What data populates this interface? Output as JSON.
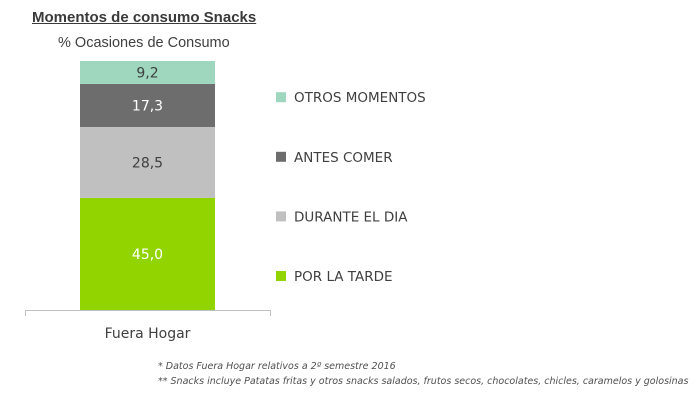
{
  "chart_data": {
    "type": "bar",
    "stacked": true,
    "title": "Momentos de consumo Snacks",
    "subtitle": "% Ocasiones de Consumo",
    "categories": [
      "Fuera Hogar"
    ],
    "series": [
      {
        "name": "POR LA TARDE",
        "values": [
          45.0
        ],
        "label": "45,0",
        "color": "#92d400",
        "label_color": "#ffffff"
      },
      {
        "name": "DURANTE EL DIA",
        "values": [
          28.5
        ],
        "label": "28,5",
        "color": "#c0c0c0",
        "label_color": "#404040"
      },
      {
        "name": "ANTES COMER",
        "values": [
          17.3
        ],
        "label": "17,3",
        "color": "#6d6d6d",
        "label_color": "#ffffff"
      },
      {
        "name": "OTROS MOMENTOS",
        "values": [
          9.2
        ],
        "label": "9,2",
        "color": "#9ed7bd",
        "label_color": "#404040"
      }
    ],
    "ylim": [
      0,
      100
    ],
    "grid": false,
    "legend": "right"
  },
  "notes": [
    "* Datos Fuera Hogar relativos a 2º semestre 2016",
    "** Snacks incluye Patatas fritas y otros snacks salados, frutos secos, chocolates, chicles, caramelos y golosinas"
  ]
}
